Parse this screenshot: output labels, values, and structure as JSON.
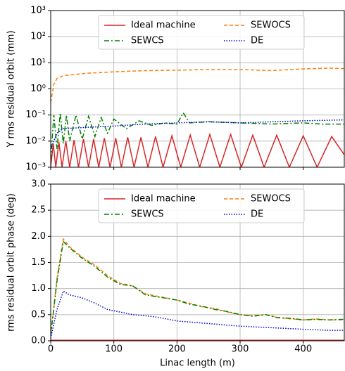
{
  "chart_data": [
    {
      "type": "line",
      "ylabel": "Y rms residual orbit (mm)",
      "log_y": true,
      "grid": true,
      "legend": "upper center",
      "xlim": [
        0,
        465
      ],
      "xticks": [
        0,
        100,
        200,
        300,
        400
      ],
      "ylim": [
        0.001,
        1000
      ],
      "yticks": [
        {
          "value": 0.001,
          "label": "10⁻³"
        },
        {
          "value": 0.01,
          "label": "10⁻²"
        },
        {
          "value": 0.1,
          "label": "10⁻¹"
        },
        {
          "value": 1,
          "label": "10⁰"
        },
        {
          "value": 10,
          "label": "10¹"
        },
        {
          "value": 100,
          "label": "10²"
        },
        {
          "value": 1000,
          "label": "10³"
        }
      ],
      "series": [
        {
          "name": "Ideal machine",
          "color": "#d62728",
          "linestyle": "solid",
          "x": [
            0,
            4,
            8,
            13,
            18,
            24,
            30,
            37,
            44,
            52,
            60,
            68,
            76,
            85,
            94,
            103,
            112,
            122,
            132,
            143,
            154,
            166,
            178,
            192,
            206,
            221,
            236,
            252,
            268,
            285,
            302,
            320,
            338,
            358,
            378,
            400,
            422,
            445,
            465
          ],
          "values": [
            0.001,
            0.008,
            0.001,
            0.009,
            0.001,
            0.01,
            0.001,
            0.011,
            0.001,
            0.012,
            0.001,
            0.012,
            0.001,
            0.013,
            0.001,
            0.013,
            0.001,
            0.014,
            0.001,
            0.014,
            0.001,
            0.015,
            0.001,
            0.016,
            0.001,
            0.017,
            0.001,
            0.018,
            0.001,
            0.018,
            0.001,
            0.017,
            0.001,
            0.017,
            0.001,
            0.016,
            0.001,
            0.015,
            0.003
          ]
        },
        {
          "name": "SEWOCS",
          "color": "#ff7f0e",
          "linestyle": "dashed",
          "x": [
            0,
            5,
            10,
            20,
            40,
            60,
            80,
            100,
            150,
            200,
            250,
            300,
            350,
            400,
            440,
            465
          ],
          "values": [
            0.3,
            1.5,
            2.5,
            3.2,
            3.6,
            4,
            4.2,
            4.5,
            5,
            5.2,
            5.5,
            5.5,
            5,
            5.8,
            6.2,
            6
          ]
        },
        {
          "name": "SEWCS",
          "color": "#008000",
          "linestyle": "dashdot",
          "x": [
            0,
            5,
            10,
            15,
            20,
            25,
            30,
            40,
            50,
            60,
            70,
            80,
            90,
            100,
            120,
            140,
            160,
            180,
            200,
            210,
            220,
            250,
            300,
            350,
            400,
            430,
            465
          ],
          "values": [
            0.002,
            0.1,
            0.005,
            0.12,
            0.008,
            0.1,
            0.01,
            0.1,
            0.012,
            0.09,
            0.015,
            0.08,
            0.02,
            0.07,
            0.03,
            0.06,
            0.04,
            0.05,
            0.045,
            0.12,
            0.05,
            0.055,
            0.05,
            0.045,
            0.05,
            0.045,
            0.045
          ]
        },
        {
          "name": "DE",
          "color": "#0000cc",
          "linestyle": "dotted",
          "x": [
            0,
            10,
            20,
            50,
            100,
            150,
            200,
            250,
            300,
            350,
            400,
            465
          ],
          "values": [
            0.005,
            0.02,
            0.03,
            0.033,
            0.038,
            0.045,
            0.05,
            0.055,
            0.05,
            0.055,
            0.06,
            0.065
          ]
        }
      ]
    },
    {
      "type": "line",
      "ylabel": "rms residual orbit phase (deg)",
      "xlabel": "Linac length (m)",
      "grid": true,
      "legend": "upper center",
      "xlim": [
        0,
        465
      ],
      "xticks": [
        0,
        100,
        200,
        300,
        400
      ],
      "ylim": [
        0,
        3
      ],
      "yticks": [
        {
          "value": 0,
          "label": "0.0"
        },
        0.5,
        {
          "value": 1,
          "label": "1.0"
        },
        1.5,
        {
          "value": 2,
          "label": "2.0"
        },
        2.5,
        {
          "value": 3,
          "label": "3.0"
        }
      ],
      "series": [
        {
          "name": "Ideal machine",
          "color": "#d62728",
          "linestyle": "solid",
          "x": [
            0,
            50,
            100,
            150,
            200,
            250,
            300,
            350,
            400,
            465
          ],
          "values": [
            0.01,
            0.01,
            0.01,
            0.01,
            0.01,
            0.01,
            0.01,
            0.01,
            0.01,
            0.01
          ]
        },
        {
          "name": "SEWOCS",
          "color": "#ff7f0e",
          "linestyle": "dashed",
          "x": [
            0,
            10,
            20,
            30,
            50,
            70,
            90,
            110,
            130,
            150,
            170,
            200,
            220,
            240,
            260,
            280,
            300,
            320,
            340,
            360,
            380,
            400,
            420,
            440,
            465
          ],
          "values": [
            0.1,
            1.2,
            1.95,
            1.8,
            1.6,
            1.45,
            1.25,
            1.1,
            1.05,
            0.9,
            0.85,
            0.78,
            0.72,
            0.65,
            0.62,
            0.55,
            0.5,
            0.48,
            0.5,
            0.45,
            0.42,
            0.4,
            0.42,
            0.4,
            0.4
          ]
        },
        {
          "name": "SEWCS",
          "color": "#008000",
          "linestyle": "dashdot",
          "x": [
            0,
            10,
            20,
            30,
            50,
            70,
            90,
            110,
            130,
            150,
            170,
            200,
            220,
            240,
            260,
            280,
            300,
            320,
            340,
            360,
            380,
            400,
            420,
            440,
            465
          ],
          "values": [
            0.1,
            1.15,
            1.9,
            1.78,
            1.58,
            1.42,
            1.22,
            1.08,
            1.05,
            0.88,
            0.84,
            0.78,
            0.7,
            0.66,
            0.6,
            0.56,
            0.5,
            0.47,
            0.5,
            0.44,
            0.43,
            0.4,
            0.41,
            0.4,
            0.41
          ]
        },
        {
          "name": "DE",
          "color": "#0000cc",
          "linestyle": "dotted",
          "x": [
            0,
            10,
            20,
            30,
            50,
            70,
            90,
            110,
            130,
            150,
            170,
            200,
            250,
            300,
            350,
            400,
            440,
            465
          ],
          "values": [
            0.05,
            0.6,
            0.95,
            0.88,
            0.82,
            0.72,
            0.6,
            0.55,
            0.5,
            0.48,
            0.45,
            0.38,
            0.33,
            0.28,
            0.25,
            0.22,
            0.2,
            0.2
          ]
        }
      ]
    }
  ]
}
